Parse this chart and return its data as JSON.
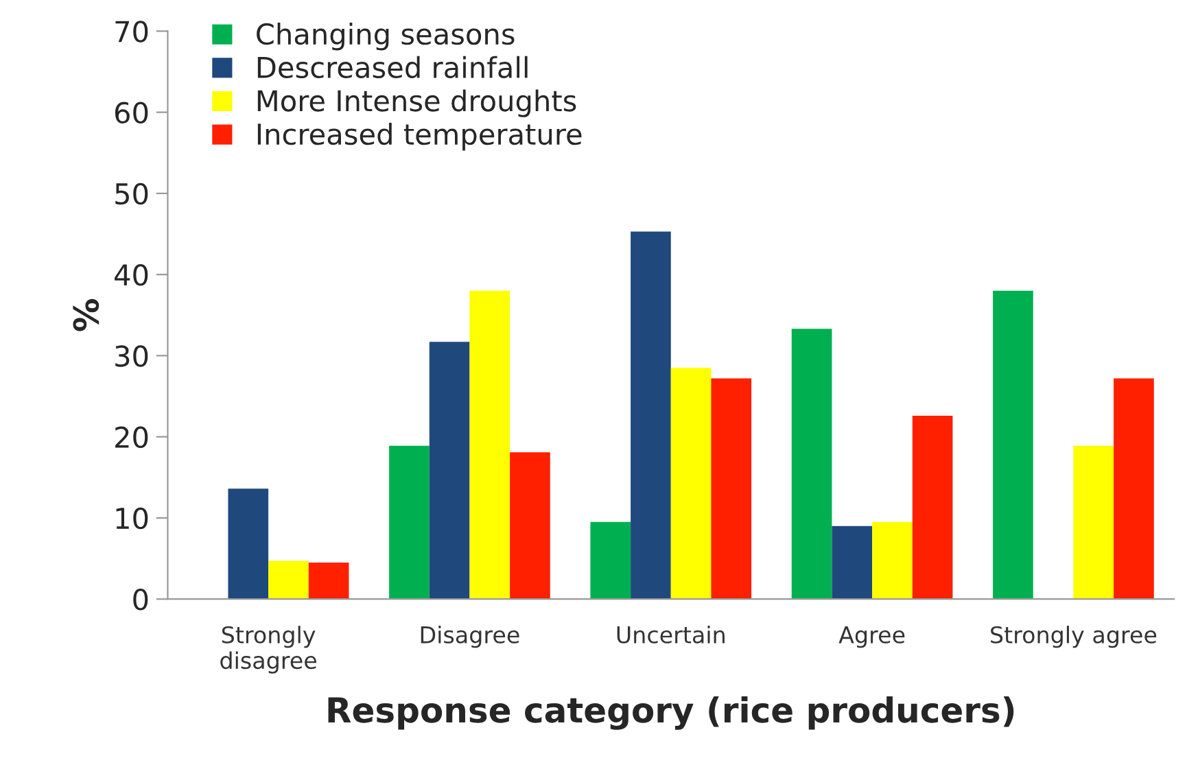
{
  "chart_data": {
    "type": "bar",
    "xlabel": "Response category (rice producers)",
    "ylabel": "%",
    "categories": [
      "Strongly\ndisagree",
      "Disagree",
      "Uncertain",
      "Agree",
      "Strongly agree"
    ],
    "series": [
      {
        "name": "Changing seasons",
        "color": "#00b050",
        "values": [
          null,
          18.9,
          9.5,
          33.3,
          38.0
        ]
      },
      {
        "name": "Descreased rainfall",
        "color": "#1f497d",
        "values": [
          13.6,
          31.7,
          45.3,
          9.0,
          null
        ]
      },
      {
        "name": "More Intense droughts",
        "color": "#ffff00",
        "values": [
          4.7,
          38.0,
          28.5,
          9.5,
          18.9
        ]
      },
      {
        "name": "Increased temperature",
        "color": "#ff2000",
        "values": [
          4.5,
          18.1,
          27.2,
          22.6,
          27.2
        ]
      }
    ],
    "ylim": [
      0,
      70
    ],
    "yticks": [
      0,
      10,
      20,
      30,
      40,
      50,
      60,
      70
    ],
    "grid": false,
    "legend": "top left"
  }
}
